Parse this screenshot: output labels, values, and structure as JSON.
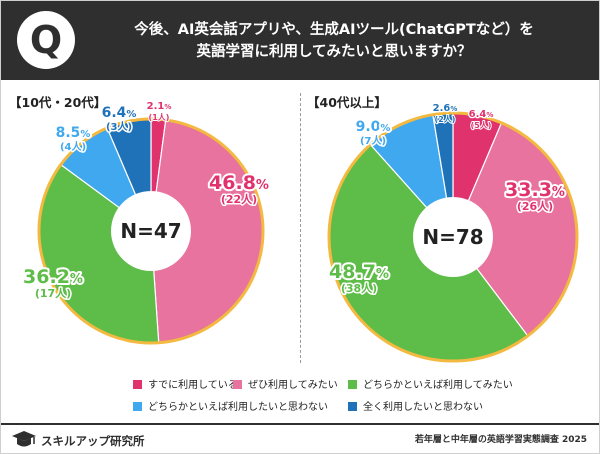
{
  "header": {
    "q_badge": "Q",
    "question_line1": "今後、AI英会話アプリや、生成AIツール(ChatGPTなど）を",
    "question_line2": "英語学習に利用してみたいと思いますか？"
  },
  "colors": {
    "pink_red": "#e0326d",
    "pink": "#e8739e",
    "green": "#5ebc48",
    "light_blue": "#40a8ee",
    "dark_blue": "#1f72b8",
    "outline": "#f3b940",
    "header_bg": "#2f2f2f"
  },
  "chart_data": [
    {
      "type": "pie",
      "title": "【10代・20代】",
      "center_label": "N=47",
      "categories": [
        "すでに利用している",
        "ぜひ利用してみたい",
        "どちらかといえば利用してみたい",
        "どちらかといえば利用したいと思わない",
        "全く利用したいと思わない"
      ],
      "values": [
        2.1,
        46.8,
        36.2,
        8.5,
        6.4
      ],
      "counts": [
        1,
        22,
        17,
        4,
        3
      ],
      "value_labels": [
        "2.1%",
        "46.8%",
        "36.2%",
        "8.5%",
        "6.4%"
      ],
      "count_labels": [
        "(1人)",
        "(22人)",
        "(17人)",
        "(4人)",
        "(3人)"
      ]
    },
    {
      "type": "pie",
      "title": "【40代以上】",
      "center_label": "N=78",
      "categories": [
        "すでに利用している",
        "ぜひ利用してみたい",
        "どちらかといえば利用してみたい",
        "どちらかといえば利用したいと思わない",
        "全く利用したいと思わない"
      ],
      "values": [
        6.4,
        33.3,
        48.7,
        9.0,
        2.6
      ],
      "counts": [
        5,
        26,
        38,
        7,
        2
      ],
      "value_labels": [
        "6.4%",
        "33.3%",
        "48.7%",
        "9.0%",
        "2.6%"
      ],
      "count_labels": [
        "(5人)",
        "(26人)",
        "(38人)",
        "(7人)",
        "(2人)"
      ]
    }
  ],
  "legend": {
    "items": [
      {
        "label": "すでに利用している",
        "color": "#e0326d"
      },
      {
        "label": "ぜひ利用してみたい",
        "color": "#e8739e"
      },
      {
        "label": "どちらかといえば利用してみたい",
        "color": "#5ebc48"
      },
      {
        "label": "どちらかといえば利用したいと思わない",
        "color": "#40a8ee"
      },
      {
        "label": "全く利用したいと思わない",
        "color": "#1f72b8"
      }
    ]
  },
  "footer": {
    "brand": "スキルアップ研究所",
    "source": "若年層と中年層の英語学習実態調査 2025"
  }
}
